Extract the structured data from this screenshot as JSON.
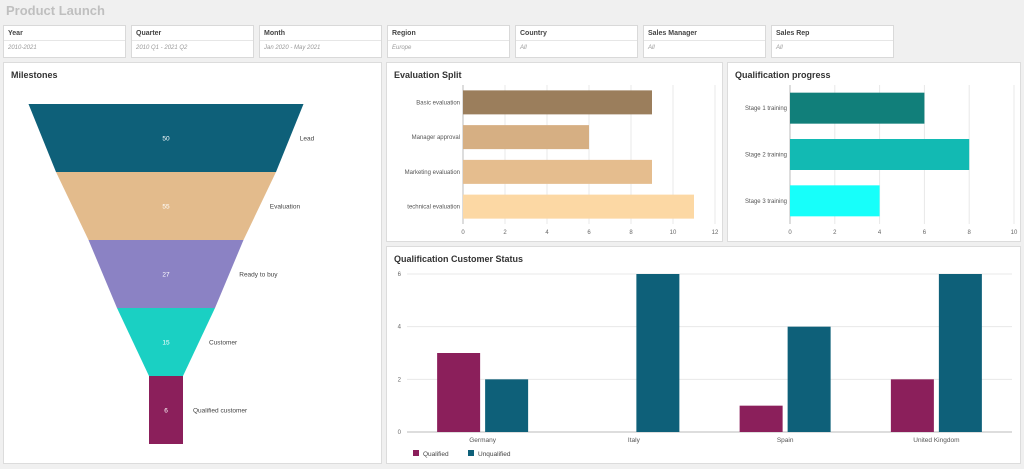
{
  "app": {
    "title": "Product Launch"
  },
  "filters": [
    {
      "label": "Year",
      "value": "2010-2021"
    },
    {
      "label": "Quarter",
      "value": "2010 Q1 - 2021 Q2"
    },
    {
      "label": "Month",
      "value": "Jan 2020 - May 2021"
    },
    {
      "label": "Region",
      "value": "Europe"
    },
    {
      "label": "Country",
      "value": "All"
    },
    {
      "label": "Sales Manager",
      "value": "All"
    },
    {
      "label": "Sales Rep",
      "value": "All"
    }
  ],
  "colors": {
    "funnel": [
      "#0e6079",
      "#e3bb8c",
      "#8b82c4",
      "#1ad0c3",
      "#8b1f5b"
    ],
    "evaluation": [
      "#9b7e5c",
      "#d6af83",
      "#e5bd8e",
      "#fcd8a4"
    ],
    "qualification": [
      "#117f7a",
      "#12bab3",
      "#17fffa"
    ],
    "qualified": "#8b1f5b",
    "unqualified": "#0e6079"
  },
  "chart_data": [
    {
      "id": "milestones",
      "type": "funnel",
      "title": "Milestones",
      "categories": [
        "Lead",
        "Evaluation",
        "Ready to buy",
        "Customer",
        "Qualified customer"
      ],
      "values": [
        50,
        55,
        27,
        15,
        6
      ]
    },
    {
      "id": "evaluation_split",
      "type": "bar",
      "orientation": "horizontal",
      "title": "Evaluation Split",
      "categories": [
        "Basic evaluation",
        "Manager approval",
        "Marketing evaluation",
        "technical evaluation"
      ],
      "values": [
        9,
        6,
        9,
        11
      ],
      "xlim": [
        0,
        12
      ],
      "xticks": [
        0,
        2,
        4,
        6,
        8,
        10,
        12
      ],
      "grid": true
    },
    {
      "id": "qualification_progress",
      "type": "bar",
      "orientation": "horizontal",
      "title": "Qualification progress",
      "categories": [
        "Stage 1 training",
        "Stage 2 training",
        "Stage 3 training"
      ],
      "values": [
        6,
        8,
        4
      ],
      "xlim": [
        0,
        10
      ],
      "xticks": [
        0,
        2,
        4,
        6,
        8,
        10
      ],
      "grid": true
    },
    {
      "id": "customer_status",
      "type": "bar",
      "title": "Qualification Customer Status",
      "categories": [
        "Germany",
        "Italy",
        "Spain",
        "United Kingdom"
      ],
      "series": [
        {
          "name": "Qualified",
          "values": [
            3,
            0,
            1,
            2
          ]
        },
        {
          "name": "Unqualified",
          "values": [
            2,
            6,
            4,
            6
          ]
        }
      ],
      "ylim": [
        0,
        6
      ],
      "yticks": [
        0,
        2,
        4,
        6
      ],
      "legend": "bottom-left",
      "grid": true
    }
  ]
}
